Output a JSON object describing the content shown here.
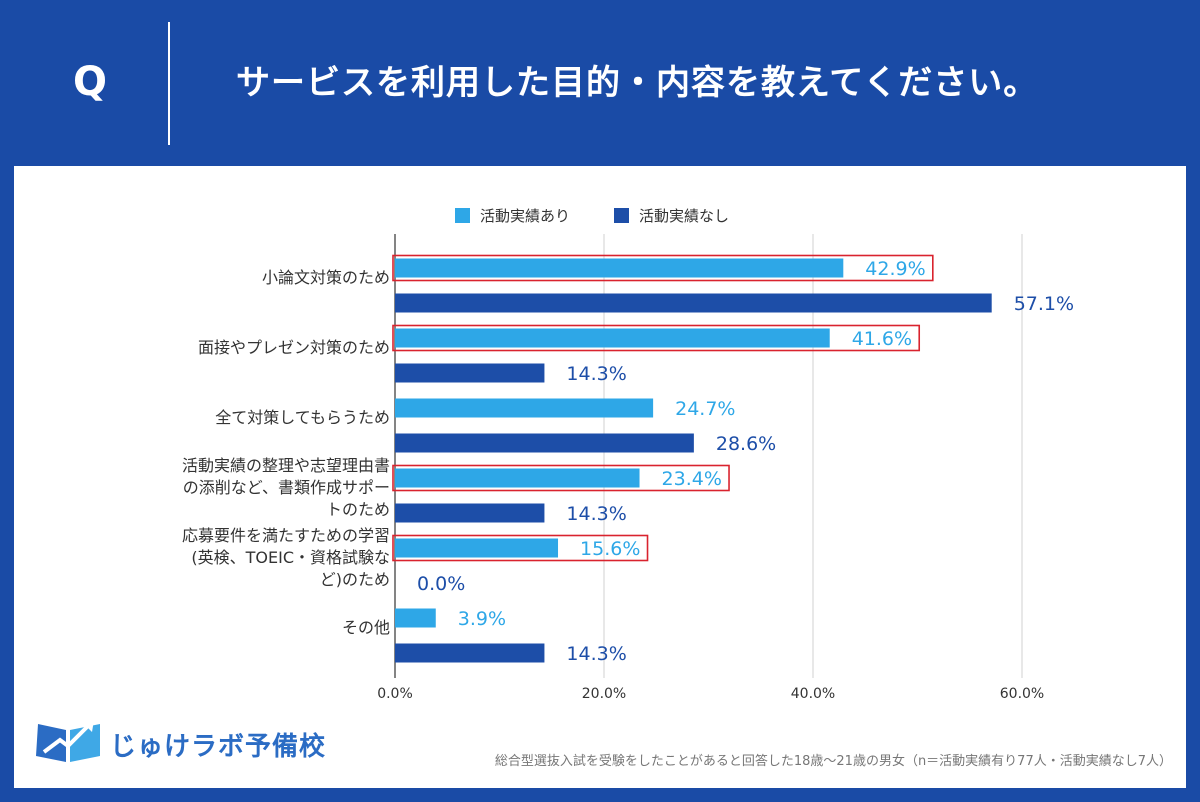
{
  "header": {
    "q_mark": "Q",
    "question": "サービスを利用した目的・内容を教えてください。"
  },
  "legend": {
    "series_a": "活動実績あり",
    "series_b": "活動実績なし"
  },
  "colors": {
    "series_a": "#2ea7e7",
    "series_b": "#1d4ea8",
    "highlight": "#d9232e",
    "header_bg": "#1a4ba6"
  },
  "chart_data": {
    "type": "bar",
    "orientation": "horizontal",
    "categories": [
      [
        "小論文対策のため"
      ],
      [
        "面接やプレゼン対策のため"
      ],
      [
        "全て対策してもらうため"
      ],
      [
        "活動実績の整理や志望理由書",
        "の添削など、書類作成サポー",
        "トのため"
      ],
      [
        "応募要件を満たすための学習",
        "(英検、TOEIC・資格試験な",
        "ど)のため"
      ],
      [
        "その他"
      ]
    ],
    "series": [
      {
        "name": "活動実績あり",
        "values": [
          42.9,
          41.6,
          24.7,
          23.4,
          15.6,
          3.9
        ],
        "labels": [
          "42.9%",
          "41.6%",
          "24.7%",
          "23.4%",
          "15.6%",
          "3.9%"
        ],
        "highlighted": [
          true,
          true,
          false,
          true,
          true,
          false
        ]
      },
      {
        "name": "活動実績なし",
        "values": [
          57.1,
          14.3,
          28.6,
          14.3,
          0.0,
          14.3
        ],
        "labels": [
          "57.1%",
          "14.3%",
          "28.6%",
          "14.3%",
          "0.0%",
          "14.3%"
        ]
      }
    ],
    "xlim": [
      0,
      60
    ],
    "xticks": [
      "0.0%",
      "20.0%",
      "40.0%",
      "60.0%"
    ],
    "grid": true,
    "legend_position": "top"
  },
  "logo": {
    "text": "じゅけラボ予備校"
  },
  "footnote": "総合型選抜入試を受験をしたことがあると回答した18歳～21歳の男女（n＝活動実績有り77人・活動実績なし7人）"
}
